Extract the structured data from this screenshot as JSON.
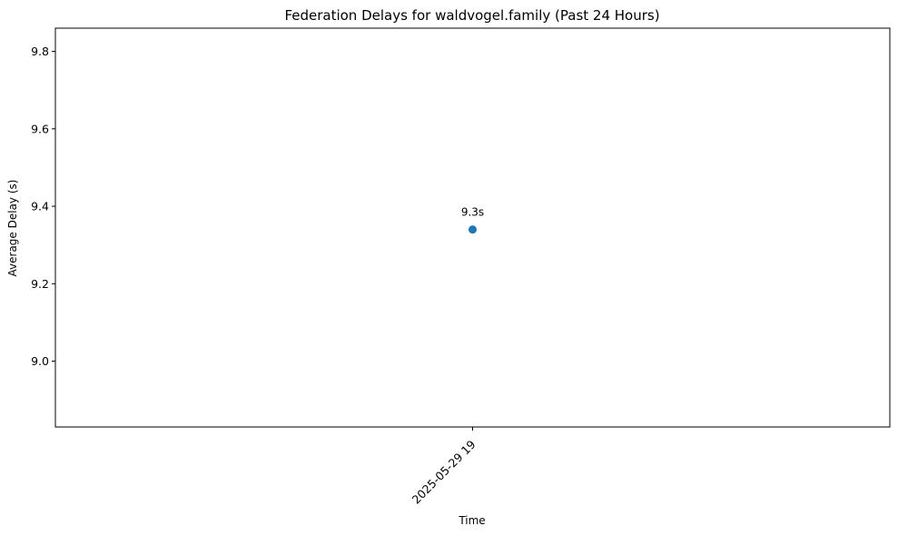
{
  "chart_data": {
    "type": "scatter",
    "title": "Federation Delays for waldvogel.family (Past 24 Hours)",
    "xlabel": "Time",
    "ylabel": "Average Delay (s)",
    "x_ticks": [
      "2025-05-29 19"
    ],
    "y_ticks": [
      9.0,
      9.2,
      9.4,
      9.6,
      9.8
    ],
    "ylim": [
      8.83,
      9.86
    ],
    "grid": false,
    "legend": "none",
    "series": [
      {
        "color": "#1f77b4",
        "points": [
          {
            "x": "2025-05-29 19",
            "y": 9.34,
            "label": "9.3s"
          }
        ]
      }
    ]
  }
}
